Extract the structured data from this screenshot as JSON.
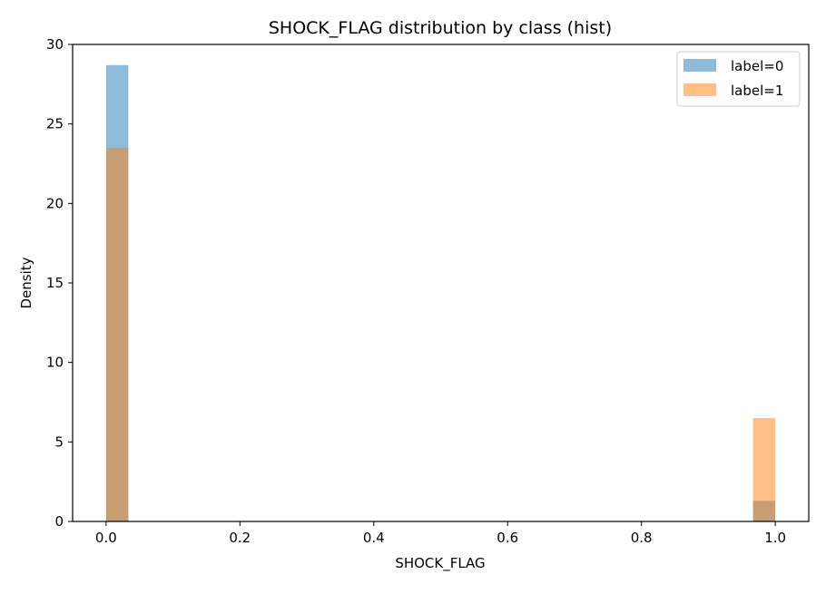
{
  "chart_data": {
    "type": "bar",
    "title": "SHOCK_FLAG distribution by class (hist)",
    "xlabel": "SHOCK_FLAG",
    "ylabel": "Density",
    "xlim": [
      -0.05,
      1.05
    ],
    "ylim": [
      0,
      30
    ],
    "xticks": [
      "0.0",
      "0.2",
      "0.4",
      "0.6",
      "0.8",
      "1.0"
    ],
    "yticks": [
      "0",
      "5",
      "10",
      "15",
      "20",
      "25",
      "30"
    ],
    "bin_width": 0.0333,
    "legend_position": "top-right",
    "grid": false,
    "series": [
      {
        "name": "label=0",
        "color": "#1f77b4",
        "opacity": 0.5,
        "bins": [
          {
            "x_start": 0.0,
            "x_end": 0.0333,
            "density": 28.7
          },
          {
            "x_start": 0.9667,
            "x_end": 1.0,
            "density": 1.3
          }
        ]
      },
      {
        "name": "label=1",
        "color": "#ff7f0e",
        "opacity": 0.5,
        "bins": [
          {
            "x_start": 0.0,
            "x_end": 0.0333,
            "density": 23.5
          },
          {
            "x_start": 0.9667,
            "x_end": 1.0,
            "density": 6.5
          }
        ]
      }
    ]
  }
}
